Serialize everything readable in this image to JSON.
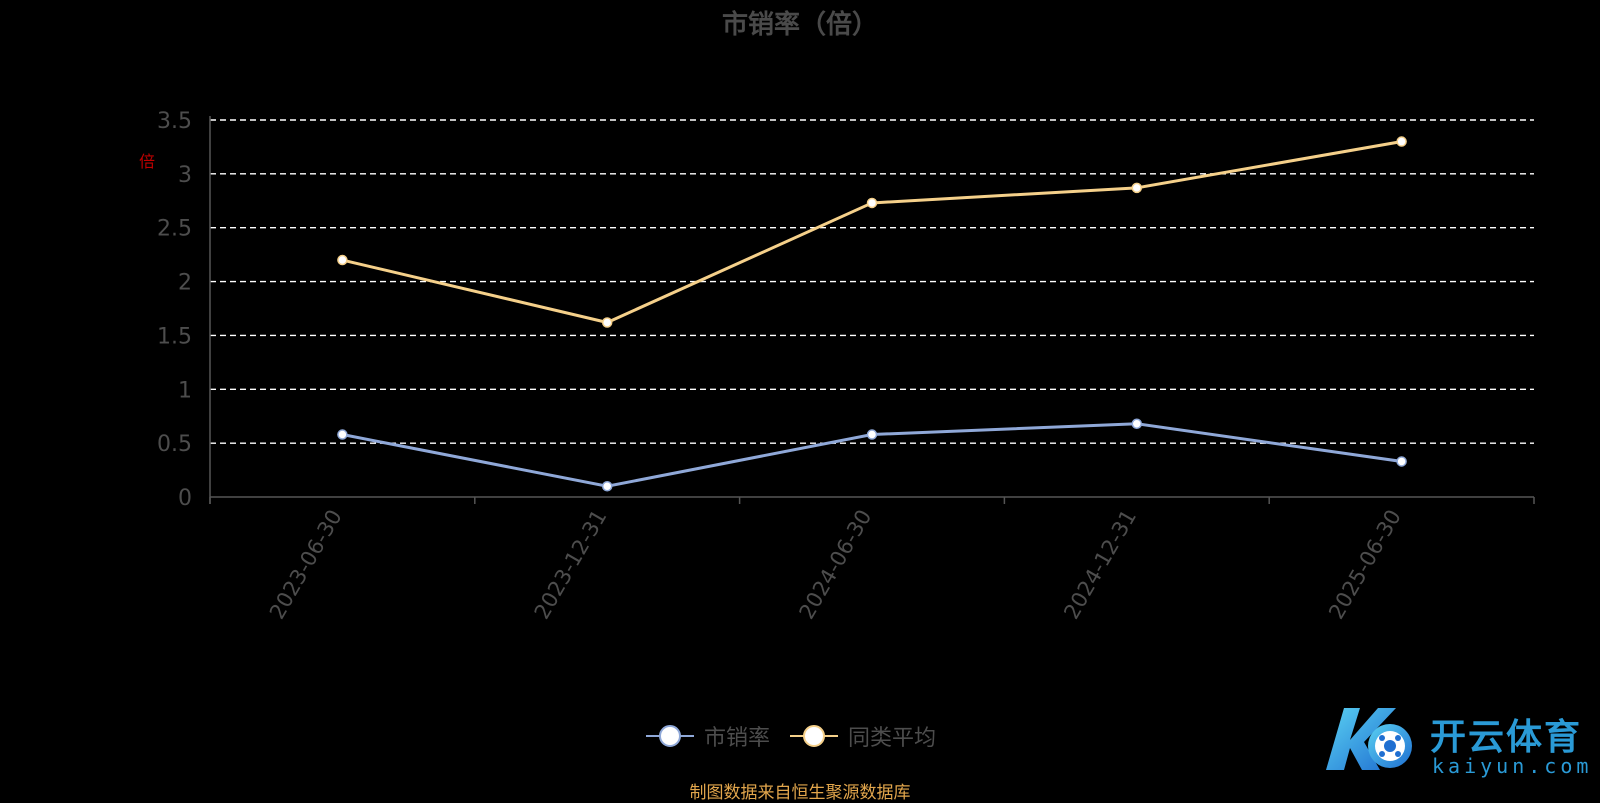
{
  "chart_data": {
    "type": "line",
    "title": "市销率（倍）",
    "unit_label": "倍",
    "categories": [
      "2023-06-30",
      "2023-12-31",
      "2024-06-30",
      "2024-12-31",
      "2025-06-30"
    ],
    "ylim": [
      0,
      3.5
    ],
    "yticks": [
      "0",
      "0.5",
      "1",
      "1.5",
      "2",
      "2.5",
      "3",
      "3.5"
    ],
    "grid": true,
    "legend_position": "bottom-center",
    "series": [
      {
        "name": "市销率",
        "color": "#8fa8d8",
        "values": [
          0.58,
          0.1,
          0.58,
          0.68,
          0.33
        ]
      },
      {
        "name": "同类平均",
        "color": "#f5d08a",
        "values": [
          2.2,
          1.62,
          2.73,
          2.87,
          3.3
        ]
      }
    ]
  },
  "source_note": "制图数据来自恒生聚源数据库",
  "logo": {
    "text": "开云体育",
    "sub": "kaiyun.com"
  }
}
